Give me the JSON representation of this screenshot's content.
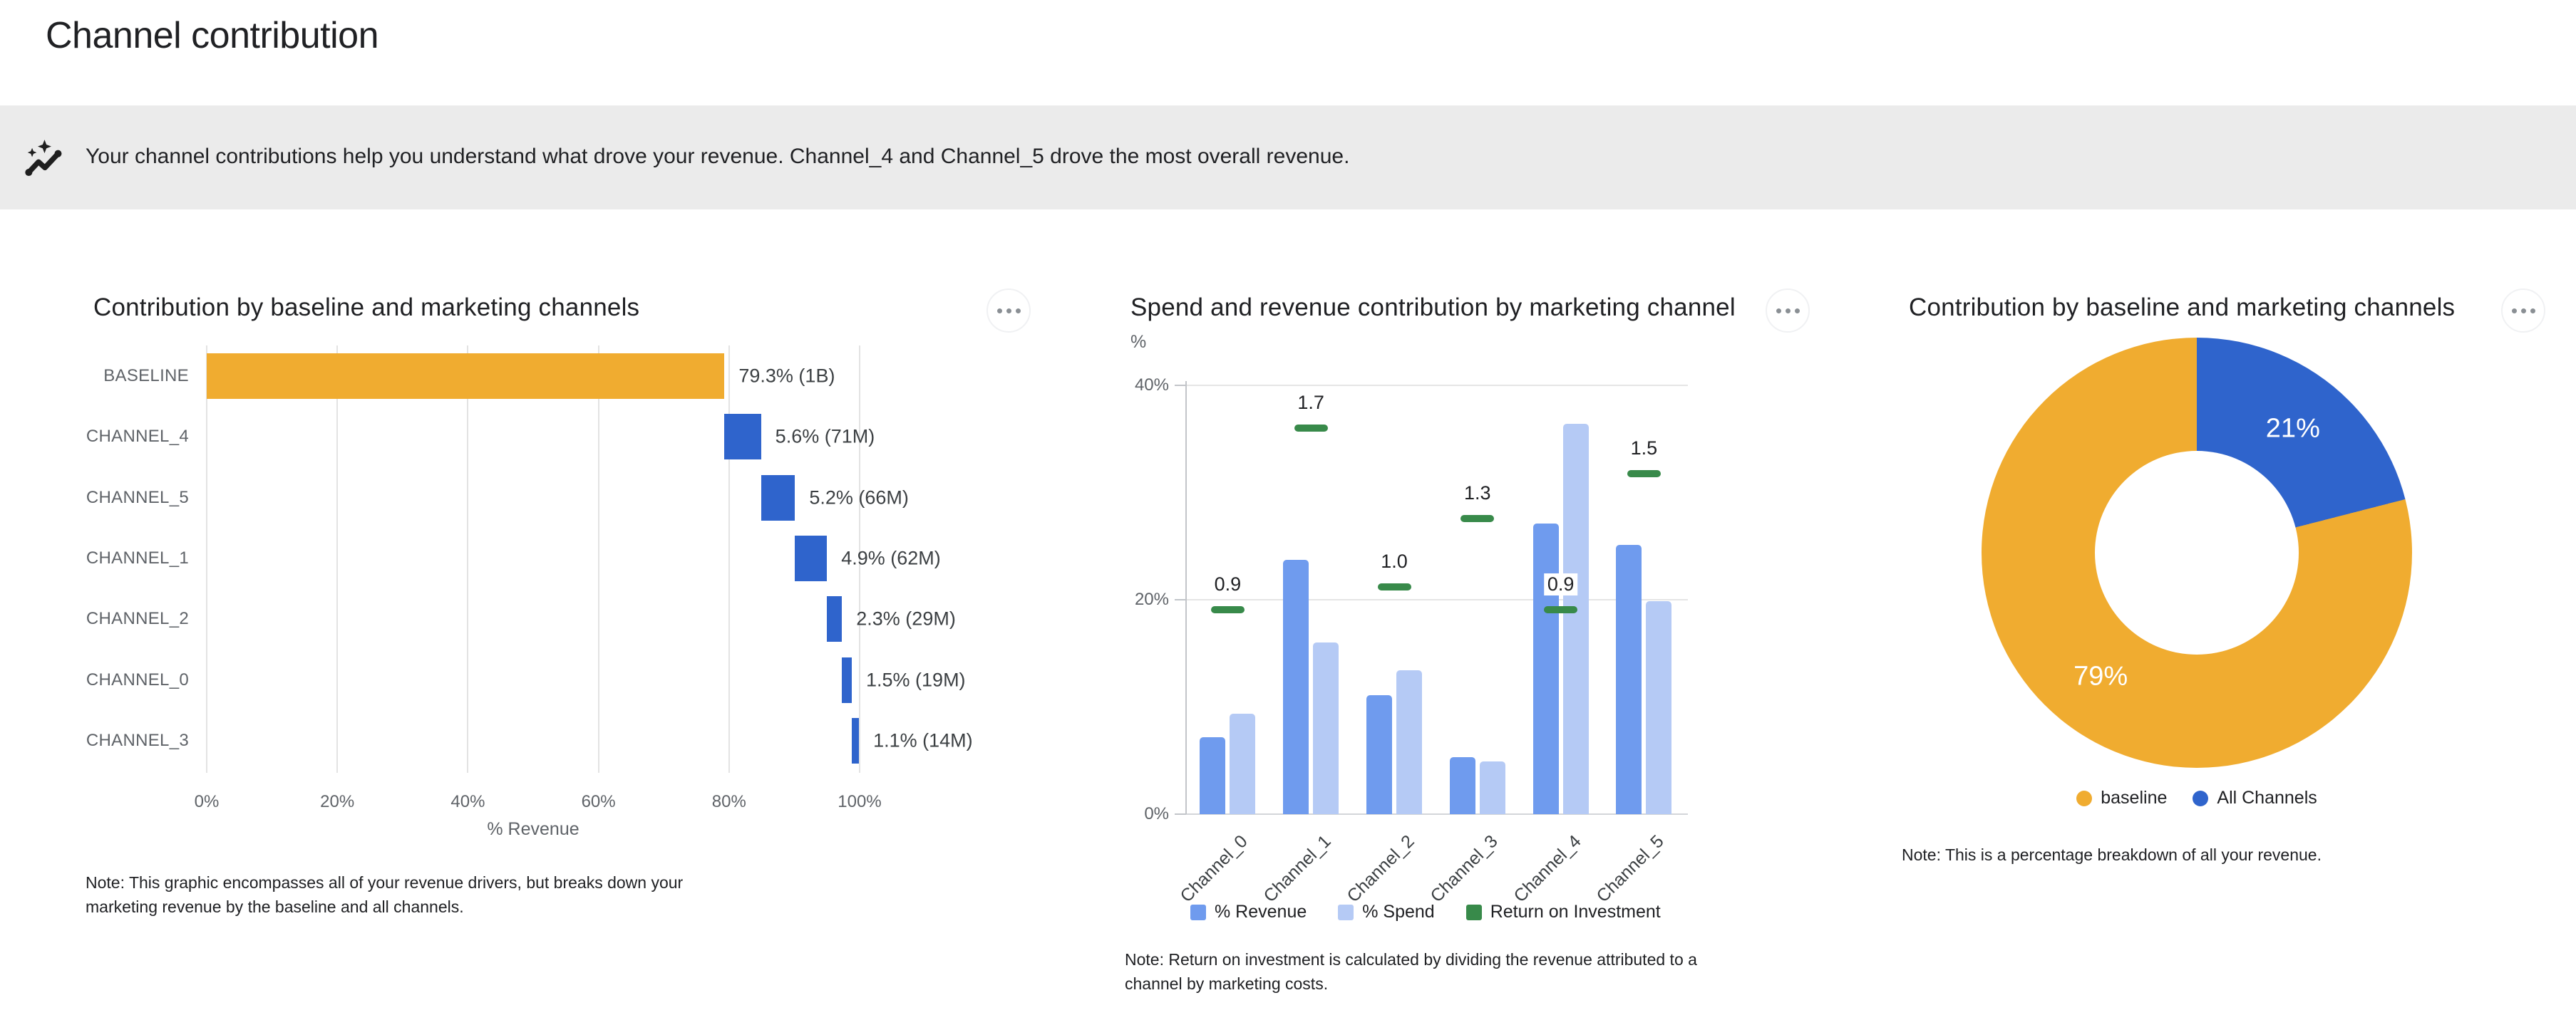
{
  "page": {
    "title": "Channel contribution"
  },
  "banner": {
    "icon": "insights-icon",
    "text": "Your channel contributions help you understand what drove your revenue. Channel_4 and Channel_5 drove the most overall revenue."
  },
  "colors": {
    "baseline_orange": "#F0AC30",
    "channel_blue": "#2F64CC",
    "revenue_blue": "#6F9BEE",
    "spend_blue": "#B5CAF5",
    "roi_green": "#388A4A",
    "banner_bg": "#EBEBEB",
    "grid": "#E3E3E3",
    "axis": "#C2C5C9",
    "tick_text": "#5F6368",
    "value_text": "#3C4043"
  },
  "chart_data": [
    {
      "type": "bar",
      "variant": "horizontal-waterfall",
      "title": "Contribution by baseline and marketing channels",
      "categories": [
        "BASELINE",
        "CHANNEL_4",
        "CHANNEL_5",
        "CHANNEL_1",
        "CHANNEL_2",
        "CHANNEL_0",
        "CHANNEL_3"
      ],
      "values": [
        79.3,
        5.6,
        5.2,
        4.9,
        2.3,
        1.5,
        1.1
      ],
      "value_labels": [
        "79.3% (1B)",
        "5.6% (71M)",
        "5.2% (66M)",
        "4.9% (62M)",
        "2.3% (29M)",
        "1.5% (19M)",
        "1.1% (14M)"
      ],
      "bar_colors": {
        "baseline": "#F0AC30",
        "channels": "#2F64CC"
      },
      "xlabel": "% Revenue",
      "xlim": [
        0,
        100
      ],
      "x_ticks": [
        "0%",
        "20%",
        "40%",
        "60%",
        "80%",
        "100%"
      ],
      "grid": "vertical",
      "note": "Note: This graphic encompasses all of your revenue drivers, but breaks down your\nmarketing revenue by the baseline and all channels."
    },
    {
      "type": "bar",
      "variant": "grouped-with-roi-markers",
      "title": "Spend and revenue contribution by marketing channel",
      "unit_label": "%",
      "categories": [
        "Channel_0",
        "Channel_1",
        "Channel_2",
        "Channel_3",
        "Channel_4",
        "Channel_5"
      ],
      "series": [
        {
          "name": "% Revenue",
          "type": "bar",
          "color": "#6F9BEE",
          "values": [
            7.2,
            23.7,
            11.1,
            5.3,
            27.1,
            25.1
          ]
        },
        {
          "name": "% Spend",
          "type": "bar",
          "color": "#B5CAF5",
          "values": [
            9.4,
            16.0,
            13.4,
            4.9,
            36.4,
            19.9
          ]
        },
        {
          "name": "Return on Investment",
          "type": "dash-marker",
          "color": "#388A4A",
          "axis": "right",
          "values": [
            0.9,
            1.7,
            1.0,
            1.3,
            0.9,
            1.5
          ],
          "value_labels": [
            "0.9",
            "1.7",
            "1.0",
            "1.3",
            "0.9",
            "1.5"
          ]
        }
      ],
      "ylim": [
        0,
        40
      ],
      "y_ticks": [
        "0%",
        "20%",
        "40%"
      ],
      "legend_position": "bottom",
      "note": "Note: Return on investment is calculated by dividing the revenue attributed to a\nchannel by marketing costs."
    },
    {
      "type": "pie",
      "variant": "donut",
      "title": "Contribution by baseline and marketing channels",
      "slices": [
        {
          "label": "baseline",
          "value": 79,
          "display": "79%",
          "color": "#F0AC30"
        },
        {
          "label": "All Channels",
          "value": 21,
          "display": "21%",
          "color": "#2F64CC"
        }
      ],
      "start": "all-channels-slice-at-12-oclock-clockwise",
      "legend_position": "bottom",
      "note": "Note: This is a percentage breakdown of all your revenue."
    }
  ]
}
